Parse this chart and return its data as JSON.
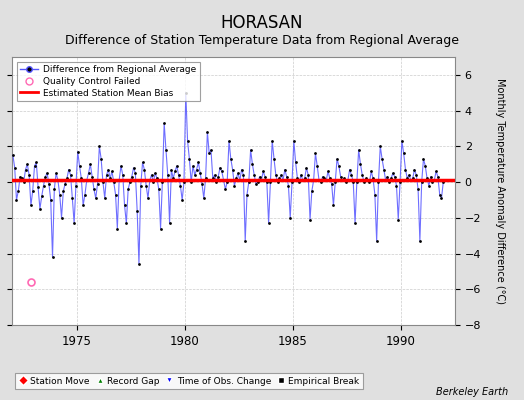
{
  "title": "HORASAN",
  "subtitle": "Difference of Station Temperature Data from Regional Average",
  "ylabel": "Monthly Temperature Anomaly Difference (°C)",
  "watermark": "Berkeley Earth",
  "xlim": [
    1972.0,
    1992.5
  ],
  "ylim": [
    -8,
    7
  ],
  "yticks": [
    -8,
    -6,
    -4,
    -2,
    0,
    2,
    4,
    6
  ],
  "bias_value": 0.1,
  "bias_color": "#ff0000",
  "line_color": "#5555ff",
  "line_color_dark": "#0000cc",
  "marker_color": "#000000",
  "qc_color": "#ff69b4",
  "background_color": "#e0e0e0",
  "plot_bg_color": "#ffffff",
  "title_fontsize": 12,
  "subtitle_fontsize": 9,
  "xtick_positions": [
    1975,
    1980,
    1985,
    1990
  ],
  "time_series": [
    [
      1972.042,
      1.5
    ],
    [
      1972.125,
      0.8
    ],
    [
      1972.208,
      -1.0
    ],
    [
      1972.292,
      -0.5
    ],
    [
      1972.375,
      0.3
    ],
    [
      1972.458,
      0.2
    ],
    [
      1972.542,
      0.0
    ],
    [
      1972.625,
      0.7
    ],
    [
      1972.708,
      1.0
    ],
    [
      1972.792,
      0.4
    ],
    [
      1972.875,
      -1.3
    ],
    [
      1972.958,
      -0.5
    ],
    [
      1973.042,
      0.9
    ],
    [
      1973.125,
      1.1
    ],
    [
      1973.208,
      -0.3
    ],
    [
      1973.292,
      -1.5
    ],
    [
      1973.375,
      -0.8
    ],
    [
      1973.458,
      -0.2
    ],
    [
      1973.542,
      0.3
    ],
    [
      1973.625,
      0.5
    ],
    [
      1973.708,
      -0.1
    ],
    [
      1973.792,
      -1.0
    ],
    [
      1973.875,
      -4.2
    ],
    [
      1973.958,
      -0.4
    ],
    [
      1974.042,
      0.5
    ],
    [
      1974.125,
      0.1
    ],
    [
      1974.208,
      -0.7
    ],
    [
      1974.292,
      -2.0
    ],
    [
      1974.375,
      -0.5
    ],
    [
      1974.458,
      -0.1
    ],
    [
      1974.542,
      0.2
    ],
    [
      1974.625,
      0.7
    ],
    [
      1974.708,
      0.4
    ],
    [
      1974.792,
      -0.9
    ],
    [
      1974.875,
      -2.3
    ],
    [
      1974.958,
      -0.2
    ],
    [
      1975.042,
      1.7
    ],
    [
      1975.125,
      0.9
    ],
    [
      1975.208,
      0.2
    ],
    [
      1975.292,
      -1.3
    ],
    [
      1975.375,
      -0.7
    ],
    [
      1975.458,
      0.1
    ],
    [
      1975.542,
      0.5
    ],
    [
      1975.625,
      1.0
    ],
    [
      1975.708,
      0.3
    ],
    [
      1975.792,
      -0.4
    ],
    [
      1975.875,
      -0.9
    ],
    [
      1975.958,
      -0.1
    ],
    [
      1976.042,
      2.0
    ],
    [
      1976.125,
      1.3
    ],
    [
      1976.208,
      0.0
    ],
    [
      1976.292,
      -0.9
    ],
    [
      1976.375,
      0.4
    ],
    [
      1976.458,
      0.7
    ],
    [
      1976.542,
      0.2
    ],
    [
      1976.625,
      0.6
    ],
    [
      1976.708,
      0.0
    ],
    [
      1976.792,
      -0.7
    ],
    [
      1976.875,
      -2.6
    ],
    [
      1976.958,
      0.1
    ],
    [
      1977.042,
      0.9
    ],
    [
      1977.125,
      0.4
    ],
    [
      1977.208,
      -1.3
    ],
    [
      1977.292,
      -2.3
    ],
    [
      1977.375,
      -0.4
    ],
    [
      1977.458,
      0.0
    ],
    [
      1977.542,
      0.3
    ],
    [
      1977.625,
      0.8
    ],
    [
      1977.708,
      0.5
    ],
    [
      1977.792,
      -1.6
    ],
    [
      1977.875,
      -4.6
    ],
    [
      1977.958,
      -0.2
    ],
    [
      1978.042,
      1.1
    ],
    [
      1978.125,
      0.7
    ],
    [
      1978.208,
      -0.2
    ],
    [
      1978.292,
      -0.9
    ],
    [
      1978.375,
      0.1
    ],
    [
      1978.458,
      0.4
    ],
    [
      1978.542,
      0.0
    ],
    [
      1978.625,
      0.5
    ],
    [
      1978.708,
      0.2
    ],
    [
      1978.792,
      -0.4
    ],
    [
      1978.875,
      -2.6
    ],
    [
      1978.958,
      0.0
    ],
    [
      1979.042,
      3.3
    ],
    [
      1979.125,
      1.8
    ],
    [
      1979.208,
      0.4
    ],
    [
      1979.292,
      -2.3
    ],
    [
      1979.375,
      0.7
    ],
    [
      1979.458,
      0.2
    ],
    [
      1979.542,
      0.6
    ],
    [
      1979.625,
      0.9
    ],
    [
      1979.708,
      0.4
    ],
    [
      1979.792,
      -0.2
    ],
    [
      1979.875,
      -1.0
    ],
    [
      1979.958,
      0.0
    ],
    [
      1980.042,
      5.0
    ],
    [
      1980.125,
      2.3
    ],
    [
      1980.208,
      1.3
    ],
    [
      1980.292,
      0.0
    ],
    [
      1980.375,
      0.9
    ],
    [
      1980.458,
      0.4
    ],
    [
      1980.542,
      0.7
    ],
    [
      1980.625,
      1.1
    ],
    [
      1980.708,
      0.5
    ],
    [
      1980.792,
      -0.1
    ],
    [
      1980.875,
      -0.9
    ],
    [
      1980.958,
      0.2
    ],
    [
      1981.042,
      2.8
    ],
    [
      1981.125,
      1.6
    ],
    [
      1981.208,
      1.8
    ],
    [
      1981.292,
      0.2
    ],
    [
      1981.375,
      0.4
    ],
    [
      1981.458,
      0.0
    ],
    [
      1981.542,
      0.3
    ],
    [
      1981.625,
      0.8
    ],
    [
      1981.708,
      0.6
    ],
    [
      1981.792,
      0.1
    ],
    [
      1981.875,
      -0.4
    ],
    [
      1981.958,
      0.0
    ],
    [
      1982.042,
      2.3
    ],
    [
      1982.125,
      1.3
    ],
    [
      1982.208,
      0.7
    ],
    [
      1982.292,
      -0.2
    ],
    [
      1982.375,
      0.2
    ],
    [
      1982.458,
      0.5
    ],
    [
      1982.542,
      0.1
    ],
    [
      1982.625,
      0.7
    ],
    [
      1982.708,
      0.4
    ],
    [
      1982.792,
      -3.3
    ],
    [
      1982.875,
      -0.7
    ],
    [
      1982.958,
      0.0
    ],
    [
      1983.042,
      1.8
    ],
    [
      1983.125,
      1.0
    ],
    [
      1983.208,
      0.4
    ],
    [
      1983.292,
      -0.1
    ],
    [
      1983.375,
      0.0
    ],
    [
      1983.458,
      0.3
    ],
    [
      1983.542,
      0.1
    ],
    [
      1983.625,
      0.6
    ],
    [
      1983.708,
      0.3
    ],
    [
      1983.792,
      0.0
    ],
    [
      1983.875,
      -2.3
    ],
    [
      1983.958,
      0.0
    ],
    [
      1984.042,
      2.3
    ],
    [
      1984.125,
      1.3
    ],
    [
      1984.208,
      0.4
    ],
    [
      1984.292,
      0.0
    ],
    [
      1984.375,
      0.2
    ],
    [
      1984.458,
      0.4
    ],
    [
      1984.542,
      0.1
    ],
    [
      1984.625,
      0.7
    ],
    [
      1984.708,
      0.3
    ],
    [
      1984.792,
      -0.2
    ],
    [
      1984.875,
      -2.0
    ],
    [
      1984.958,
      0.0
    ],
    [
      1985.042,
      2.3
    ],
    [
      1985.125,
      1.1
    ],
    [
      1985.208,
      0.2
    ],
    [
      1985.292,
      0.0
    ],
    [
      1985.375,
      0.4
    ],
    [
      1985.458,
      0.1
    ],
    [
      1985.542,
      0.2
    ],
    [
      1985.625,
      0.8
    ],
    [
      1985.708,
      0.4
    ],
    [
      1985.792,
      -2.1
    ],
    [
      1985.875,
      -0.5
    ],
    [
      1985.958,
      0.1
    ],
    [
      1986.042,
      1.6
    ],
    [
      1986.125,
      0.9
    ],
    [
      1986.208,
      0.1
    ],
    [
      1986.292,
      0.0
    ],
    [
      1986.375,
      0.3
    ],
    [
      1986.458,
      0.2
    ],
    [
      1986.542,
      0.1
    ],
    [
      1986.625,
      0.6
    ],
    [
      1986.708,
      0.2
    ],
    [
      1986.792,
      -0.1
    ],
    [
      1986.875,
      -1.3
    ],
    [
      1986.958,
      0.0
    ],
    [
      1987.042,
      1.3
    ],
    [
      1987.125,
      0.9
    ],
    [
      1987.208,
      0.3
    ],
    [
      1987.292,
      0.1
    ],
    [
      1987.375,
      0.2
    ],
    [
      1987.458,
      0.0
    ],
    [
      1987.542,
      0.1
    ],
    [
      1987.625,
      0.7
    ],
    [
      1987.708,
      0.4
    ],
    [
      1987.792,
      0.0
    ],
    [
      1987.875,
      -2.3
    ],
    [
      1987.958,
      0.0
    ],
    [
      1988.042,
      1.8
    ],
    [
      1988.125,
      1.0
    ],
    [
      1988.208,
      0.4
    ],
    [
      1988.292,
      0.0
    ],
    [
      1988.375,
      0.2
    ],
    [
      1988.458,
      0.1
    ],
    [
      1988.542,
      0.0
    ],
    [
      1988.625,
      0.6
    ],
    [
      1988.708,
      0.2
    ],
    [
      1988.792,
      -0.7
    ],
    [
      1988.875,
      -3.3
    ],
    [
      1988.958,
      0.0
    ],
    [
      1989.042,
      2.0
    ],
    [
      1989.125,
      1.3
    ],
    [
      1989.208,
      0.7
    ],
    [
      1989.292,
      0.1
    ],
    [
      1989.375,
      0.3
    ],
    [
      1989.458,
      0.0
    ],
    [
      1989.542,
      0.2
    ],
    [
      1989.625,
      0.5
    ],
    [
      1989.708,
      0.3
    ],
    [
      1989.792,
      -0.2
    ],
    [
      1989.875,
      -2.1
    ],
    [
      1989.958,
      0.0
    ],
    [
      1990.042,
      2.3
    ],
    [
      1990.125,
      1.6
    ],
    [
      1990.208,
      0.7
    ],
    [
      1990.292,
      0.2
    ],
    [
      1990.375,
      0.4
    ],
    [
      1990.458,
      0.1
    ],
    [
      1990.542,
      0.2
    ],
    [
      1990.625,
      0.7
    ],
    [
      1990.708,
      0.4
    ],
    [
      1990.792,
      -0.4
    ],
    [
      1990.875,
      -3.3
    ],
    [
      1990.958,
      0.0
    ],
    [
      1991.042,
      1.3
    ],
    [
      1991.125,
      0.9
    ],
    [
      1991.208,
      0.2
    ],
    [
      1991.292,
      -0.2
    ],
    [
      1991.375,
      0.3
    ],
    [
      1991.458,
      0.0
    ],
    [
      1991.542,
      0.1
    ],
    [
      1991.625,
      0.6
    ],
    [
      1991.708,
      0.3
    ],
    [
      1991.792,
      -0.7
    ],
    [
      1991.875,
      -0.9
    ],
    [
      1991.958,
      0.0
    ]
  ],
  "qc_failed_points": [
    [
      1972.875,
      -5.6
    ]
  ],
  "station_move_points": [],
  "record_gap_points": [],
  "obs_change_points": [],
  "empirical_break_points": []
}
